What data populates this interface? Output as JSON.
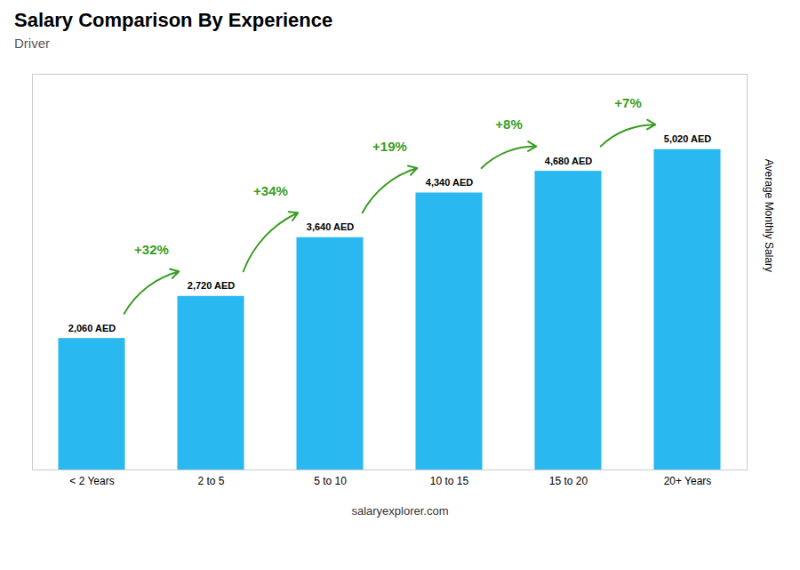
{
  "chart_data": {
    "type": "bar",
    "title": "Salary Comparison By Experience",
    "subtitle": "Driver",
    "categories": [
      "< 2 Years",
      "2 to 5",
      "5 to 10",
      "10 to 15",
      "15 to 20",
      "20+ Years"
    ],
    "values": [
      2060,
      2720,
      3640,
      4340,
      4680,
      5020
    ],
    "value_labels": [
      "2,060 AED",
      "2,720 AED",
      "3,640 AED",
      "4,340 AED",
      "4,680 AED",
      "5,020 AED"
    ],
    "data_labels": true,
    "annotations": [
      "+32%",
      "+34%",
      "+19%",
      "+8%",
      "+7%"
    ],
    "ylabel": "Average Monthly Salary",
    "caption": "salaryexplorer.com",
    "color": "#29b8f0",
    "ylim": [
      0,
      6200
    ],
    "tick_labels": "x",
    "grid": false
  }
}
